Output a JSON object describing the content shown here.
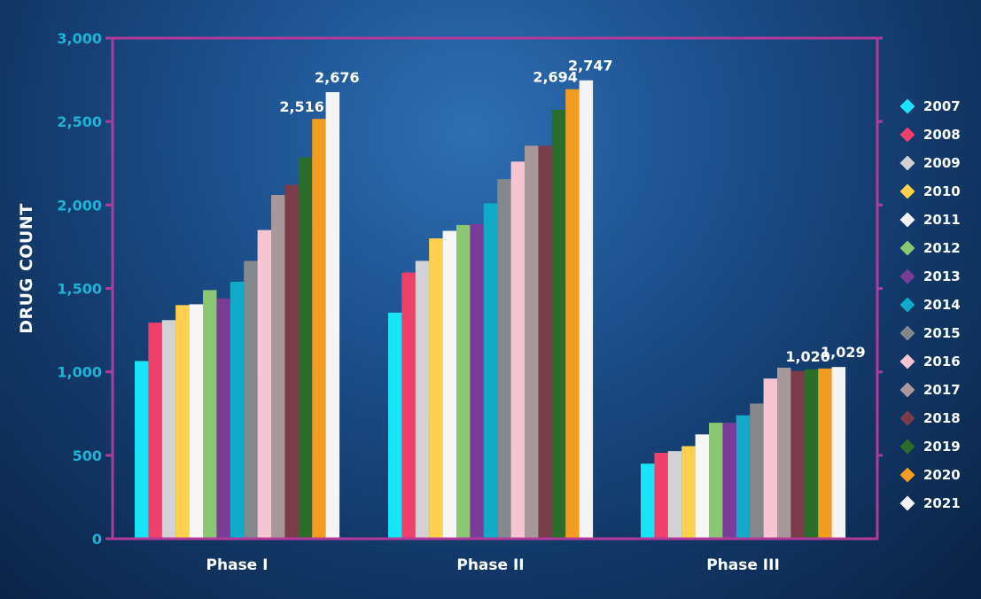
{
  "chart_data": {
    "type": "bar",
    "title": "",
    "xlabel": "",
    "ylabel": "DRUG COUNT",
    "ylim": [
      0,
      3000
    ],
    "yticks": [
      "0",
      "500",
      "1,000",
      "1,500",
      "2,000",
      "2,500",
      "3,000"
    ],
    "ytick_values": [
      0,
      500,
      1000,
      1500,
      2000,
      2500,
      3000
    ],
    "categories": [
      "Phase I",
      "Phase II",
      "Phase III"
    ],
    "series": [
      {
        "name": "2007",
        "color": "#19e3f7",
        "values": [
          1065,
          1355,
          450
        ]
      },
      {
        "name": "2008",
        "color": "#ef3f6b",
        "values": [
          1295,
          1595,
          515
        ]
      },
      {
        "name": "2009",
        "color": "#d2d2d6",
        "values": [
          1310,
          1665,
          525
        ]
      },
      {
        "name": "2010",
        "color": "#ffd04d",
        "values": [
          1400,
          1800,
          555
        ]
      },
      {
        "name": "2011",
        "color": "#f6f6f6",
        "values": [
          1405,
          1845,
          625
        ]
      },
      {
        "name": "2012",
        "color": "#8bc673",
        "values": [
          1490,
          1880,
          695
        ]
      },
      {
        "name": "2013",
        "color": "#7a3c96",
        "values": [
          1440,
          1885,
          695
        ]
      },
      {
        "name": "2014",
        "color": "#11aac8",
        "values": [
          1540,
          2010,
          740
        ]
      },
      {
        "name": "2015",
        "color": "#84878c",
        "values": [
          1665,
          2155,
          810
        ]
      },
      {
        "name": "2016",
        "color": "#f7c4d2",
        "values": [
          1850,
          2260,
          960
        ]
      },
      {
        "name": "2017",
        "color": "#a8989c",
        "values": [
          2060,
          2355,
          1025
        ]
      },
      {
        "name": "2018",
        "color": "#7c3d4a",
        "values": [
          2120,
          2355,
          1005
        ]
      },
      {
        "name": "2019",
        "color": "#2b6e2b",
        "values": [
          2285,
          2570,
          1015
        ]
      },
      {
        "name": "2020",
        "color": "#f29c22",
        "values": [
          2516,
          2694,
          1020
        ]
      },
      {
        "name": "2021",
        "color": "#f4f4f4",
        "values": [
          2676,
          2747,
          1029
        ]
      }
    ],
    "data_labels": [
      {
        "category": "Phase I",
        "series": "2020",
        "text": "2,516"
      },
      {
        "category": "Phase I",
        "series": "2021",
        "text": "2,676"
      },
      {
        "category": "Phase II",
        "series": "2020",
        "text": "2,694"
      },
      {
        "category": "Phase II",
        "series": "2021",
        "text": "2,747"
      },
      {
        "category": "Phase III",
        "series": "2020",
        "text": "1,020"
      },
      {
        "category": "Phase III",
        "series": "2021",
        "text": "1,029"
      }
    ],
    "legend_position": "right",
    "grid": false,
    "colors": {
      "frame": "#b23a9a",
      "tick_label": "#1fb4d6",
      "text": "#ffffff"
    }
  }
}
